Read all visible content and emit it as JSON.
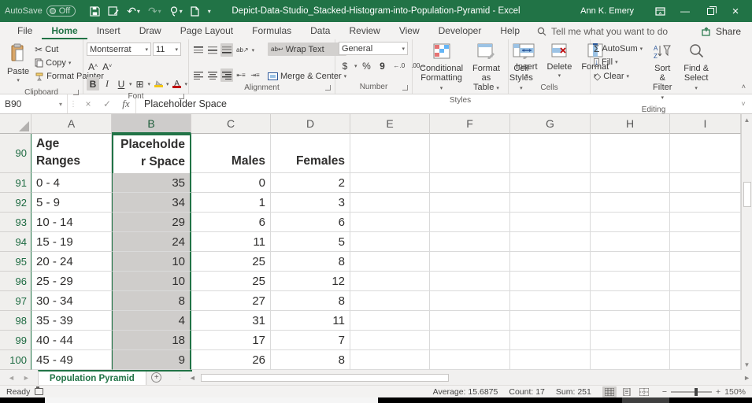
{
  "title_bar": {
    "autosave_label": "AutoSave",
    "autosave_state": "Off",
    "document_title": "Depict-Data-Studio_Stacked-Histogram-into-Population-Pyramid - Excel",
    "user_name": "Ann K. Emery"
  },
  "ribbon_tabs": [
    "File",
    "Home",
    "Insert",
    "Draw",
    "Page Layout",
    "Formulas",
    "Data",
    "Review",
    "View",
    "Developer",
    "Help"
  ],
  "active_tab": "Home",
  "search": {
    "placeholder": "Tell me what you want to do"
  },
  "share_label": "Share",
  "ribbon": {
    "clipboard": {
      "paste": "Paste",
      "cut": "Cut",
      "copy": "Copy",
      "format_painter": "Format Painter",
      "group": "Clipboard"
    },
    "font": {
      "font_name": "Montserrat",
      "font_size": "11",
      "bold": "B",
      "italic": "I",
      "underline": "U",
      "group": "Font"
    },
    "alignment": {
      "wrap_text": "Wrap Text",
      "merge_center": "Merge & Center",
      "group": "Alignment"
    },
    "number": {
      "format": "General",
      "currency": "$",
      "percent": "%",
      "comma": "9",
      "group": "Number"
    },
    "styles": {
      "conditional_l1": "Conditional",
      "conditional_l2": "Formatting",
      "format_table_l1": "Format as",
      "format_table_l2": "Table",
      "cell_styles_l1": "Cell",
      "cell_styles_l2": "Styles",
      "group": "Styles"
    },
    "cells": {
      "insert": "Insert",
      "delete": "Delete",
      "format": "Format",
      "group": "Cells"
    },
    "editing": {
      "autosum": "AutoSum",
      "fill": "Fill",
      "clear": "Clear",
      "sort_l1": "Sort &",
      "sort_l2": "Filter",
      "find_l1": "Find &",
      "find_l2": "Select",
      "group": "Editing"
    }
  },
  "formula_bar": {
    "name_box": "B90",
    "fx_label": "fx",
    "formula": "Placeholder Space"
  },
  "grid": {
    "col_headers": [
      "A",
      "B",
      "C",
      "D",
      "E",
      "F",
      "G",
      "H",
      "I"
    ],
    "selected_col": "B",
    "selected_cell": "B90",
    "rows": [
      {
        "n": "90",
        "a": "Age Ranges",
        "b": "Placeholder Space",
        "c": "Males",
        "d": "Females"
      },
      {
        "n": "91",
        "a": "0 - 4",
        "b": "35",
        "c": "0",
        "d": "2"
      },
      {
        "n": "92",
        "a": "5 - 9",
        "b": "34",
        "c": "1",
        "d": "3"
      },
      {
        "n": "93",
        "a": "10 - 14",
        "b": "29",
        "c": "6",
        "d": "6"
      },
      {
        "n": "94",
        "a": "15 - 19",
        "b": "24",
        "c": "11",
        "d": "5"
      },
      {
        "n": "95",
        "a": "20 - 24",
        "b": "10",
        "c": "25",
        "d": "8"
      },
      {
        "n": "96",
        "a": "25 - 29",
        "b": "10",
        "c": "25",
        "d": "12"
      },
      {
        "n": "97",
        "a": "30 - 34",
        "b": "8",
        "c": "27",
        "d": "8"
      },
      {
        "n": "98",
        "a": "35 - 39",
        "b": "4",
        "c": "31",
        "d": "11"
      },
      {
        "n": "99",
        "a": "40 - 44",
        "b": "18",
        "c": "17",
        "d": "7"
      },
      {
        "n": "100",
        "a": "45 - 49",
        "b": "9",
        "c": "26",
        "d": "8"
      }
    ]
  },
  "sheet_bar": {
    "tab_name": "Population Pyramid"
  },
  "status_bar": {
    "mode": "Ready",
    "average": "Average: 15.6875",
    "count": "Count: 17",
    "sum": "Sum: 251",
    "zoom": "150%"
  },
  "colors": {
    "excel_green": "#217346",
    "selection_gray": "#cfcdcb",
    "font_color_red": "#c00000",
    "fill_yellow": "#f3c613"
  },
  "icons": {
    "undo": "↶",
    "redo": "↷",
    "cut": "✂",
    "sigma": "Σ",
    "clear_diamond": "◇",
    "close": "×",
    "minimize": "—",
    "check": "✓",
    "cancel": "×",
    "border_grid": "⊞",
    "orientation": "ab↗",
    "fill_down": "↓"
  }
}
